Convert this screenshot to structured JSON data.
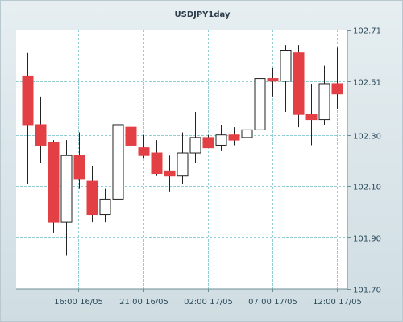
{
  "chart_data": {
    "type": "candlestick",
    "title": "USDJPY1day",
    "ylim": [
      101.7,
      102.71
    ],
    "y_ticks": [
      "102.71",
      "102.51",
      "102.30",
      "102.10",
      "101.90",
      "101.70"
    ],
    "x_ticks": [
      "16:00 16/05",
      "21:00 16/05",
      "02:00 17/05",
      "07:00 17/05",
      "12:00 17/05"
    ],
    "grid": true,
    "colors": {
      "up": "#ffffff",
      "down": "#e34046",
      "outline": "#222222",
      "grid": "#8fcfd3",
      "plot_bg": "#ffffff"
    },
    "candles": [
      {
        "open": 102.53,
        "high": 102.62,
        "low": 102.11,
        "close": 102.34
      },
      {
        "open": 102.34,
        "high": 102.45,
        "low": 102.19,
        "close": 102.26
      },
      {
        "open": 102.27,
        "high": 102.28,
        "low": 101.92,
        "close": 101.96
      },
      {
        "open": 101.96,
        "high": 102.28,
        "low": 101.83,
        "close": 102.22
      },
      {
        "open": 102.22,
        "high": 102.31,
        "low": 102.09,
        "close": 102.13
      },
      {
        "open": 102.12,
        "high": 102.18,
        "low": 101.96,
        "close": 101.99
      },
      {
        "open": 101.99,
        "high": 102.09,
        "low": 101.96,
        "close": 102.05
      },
      {
        "open": 102.05,
        "high": 102.38,
        "low": 102.04,
        "close": 102.34
      },
      {
        "open": 102.33,
        "high": 102.36,
        "low": 102.2,
        "close": 102.26
      },
      {
        "open": 102.25,
        "high": 102.3,
        "low": 102.21,
        "close": 102.22
      },
      {
        "open": 102.23,
        "high": 102.28,
        "low": 102.14,
        "close": 102.15
      },
      {
        "open": 102.16,
        "high": 102.22,
        "low": 102.08,
        "close": 102.14
      },
      {
        "open": 102.14,
        "high": 102.31,
        "low": 102.11,
        "close": 102.23
      },
      {
        "open": 102.23,
        "high": 102.39,
        "low": 102.19,
        "close": 102.29
      },
      {
        "open": 102.29,
        "high": 102.3,
        "low": 102.25,
        "close": 102.25
      },
      {
        "open": 102.26,
        "high": 102.34,
        "low": 102.24,
        "close": 102.3
      },
      {
        "open": 102.3,
        "high": 102.33,
        "low": 102.26,
        "close": 102.28
      },
      {
        "open": 102.29,
        "high": 102.36,
        "low": 102.26,
        "close": 102.32
      },
      {
        "open": 102.32,
        "high": 102.59,
        "low": 102.3,
        "close": 102.52
      },
      {
        "open": 102.52,
        "high": 102.56,
        "low": 102.45,
        "close": 102.51
      },
      {
        "open": 102.51,
        "high": 102.65,
        "low": 102.39,
        "close": 102.63
      },
      {
        "open": 102.62,
        "high": 102.65,
        "low": 102.33,
        "close": 102.38
      },
      {
        "open": 102.38,
        "high": 102.5,
        "low": 102.26,
        "close": 102.36
      },
      {
        "open": 102.36,
        "high": 102.57,
        "low": 102.34,
        "close": 102.5
      },
      {
        "open": 102.5,
        "high": 102.64,
        "low": 102.4,
        "close": 102.46
      }
    ]
  }
}
